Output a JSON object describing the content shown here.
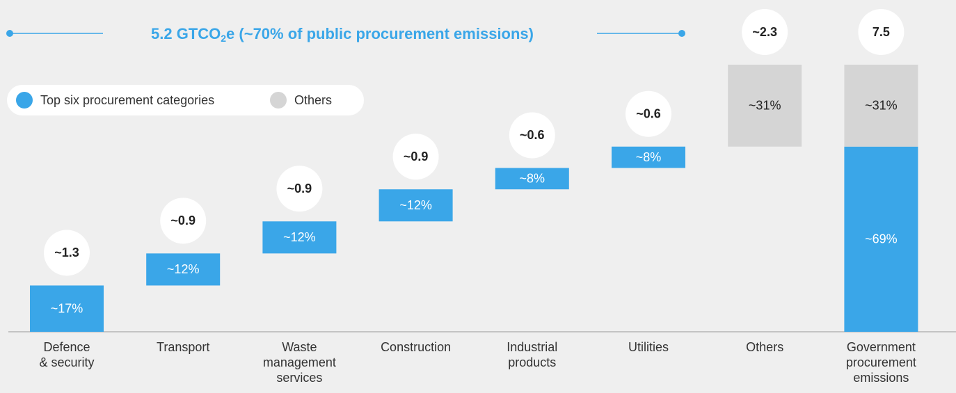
{
  "chart_data": {
    "type": "waterfall",
    "annotation": {
      "before": "5.2 GTCO",
      "sub": "2",
      "after": "e (~70% of public procurement emissions)"
    },
    "categories": [
      [
        "Defence",
        "& security"
      ],
      [
        "Transport"
      ],
      [
        "Waste",
        "management",
        "services"
      ],
      [
        "Construction"
      ],
      [
        "Industrial",
        "products"
      ],
      [
        "Utilities"
      ],
      [
        "Others"
      ],
      [
        "Government",
        "procurement",
        "emissions"
      ]
    ],
    "totals": [
      1.3,
      0.9,
      0.9,
      0.9,
      0.6,
      0.6,
      2.3,
      7.5
    ],
    "total_labels": [
      "~1.3",
      "~0.9",
      "~0.9",
      "~0.9",
      "~0.6",
      "~0.6",
      "~2.3",
      "7.5"
    ],
    "series": [
      {
        "name": "Top six procurement categories",
        "color": "#3aa6e8",
        "label_color": "#ffffff",
        "values": [
          1.3,
          0.9,
          0.9,
          0.9,
          0.6,
          0.6,
          null,
          5.2
        ],
        "value_labels": [
          "~17%",
          "~12%",
          "~12%",
          "~12%",
          "~8%",
          "~8%",
          null,
          "~69%"
        ]
      },
      {
        "name": "Others",
        "color": "#d5d5d5",
        "label_color": "#222222",
        "values": [
          null,
          null,
          null,
          null,
          null,
          null,
          2.3,
          2.3
        ],
        "value_labels": [
          null,
          null,
          null,
          null,
          null,
          null,
          "~31%",
          "~31%"
        ]
      }
    ],
    "ylim": [
      0,
      7.5
    ],
    "legend": "top-left"
  }
}
